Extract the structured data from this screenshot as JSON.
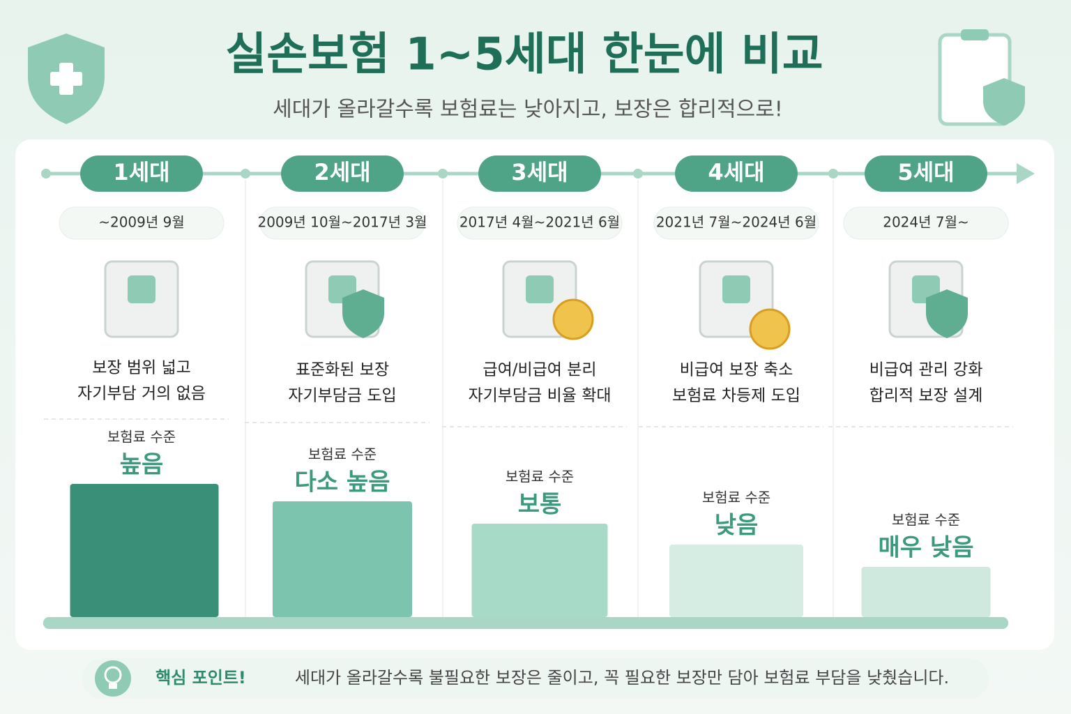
{
  "header": {
    "title": "실손보험 1~5세대 한눈에 비교",
    "subtitle": "세대가 올라갈수록 보험료는 낮아지고, 보장은 합리적으로!"
  },
  "generations": [
    {
      "label": "1세대",
      "period": "~2009년 9월",
      "description": [
        "보장 범위 넓고",
        "자기부담 거의 없음"
      ],
      "premium_label": "보험료 수준",
      "premium_level": "높음"
    },
    {
      "label": "2세대",
      "period": "2009년 10월~2017년 3월",
      "description": [
        "표준화된 보장",
        "자기부담금 도입"
      ],
      "premium_label": "보험료 수준",
      "premium_level": "다소 높음"
    },
    {
      "label": "3세대",
      "period": "2017년 4월~2021년 6월",
      "description": [
        "급여/비급여 분리",
        "자기부담금 비율 확대"
      ],
      "premium_label": "보험료 수준",
      "premium_level": "보통"
    },
    {
      "label": "4세대",
      "period": "2021년 7월~2024년 6월",
      "description": [
        "비급여 보장 축소",
        "보험료 차등제 도입"
      ],
      "premium_label": "보험료 수준",
      "premium_level": "낮음"
    },
    {
      "label": "5세대",
      "period": "2024년 7월~",
      "description": [
        "비급여 관리 강화",
        "합리적 보장 설계"
      ],
      "premium_label": "보험료 수준",
      "premium_level": "매우 낮음"
    }
  ],
  "footer": {
    "label": "핵심 포인트!",
    "text": "세대가 올라갈수록 불필요한 보장은 줄이고, 꼭 필요한 보장만 담아 보험료 부담을 낮췄습니다."
  }
}
